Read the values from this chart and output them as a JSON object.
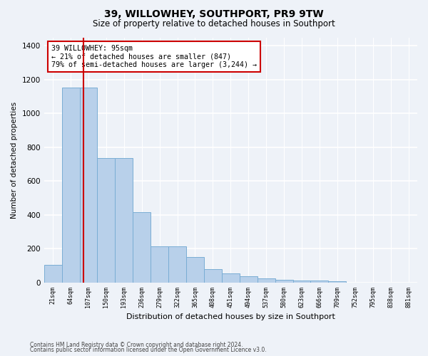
{
  "title": "39, WILLOWHEY, SOUTHPORT, PR9 9TW",
  "subtitle": "Size of property relative to detached houses in Southport",
  "xlabel": "Distribution of detached houses by size in Southport",
  "ylabel": "Number of detached properties",
  "footer_line1": "Contains HM Land Registry data © Crown copyright and database right 2024.",
  "footer_line2": "Contains public sector information licensed under the Open Government Licence v3.0.",
  "bar_labels": [
    "21sqm",
    "64sqm",
    "107sqm",
    "150sqm",
    "193sqm",
    "236sqm",
    "279sqm",
    "322sqm",
    "365sqm",
    "408sqm",
    "451sqm",
    "494sqm",
    "537sqm",
    "580sqm",
    "623sqm",
    "666sqm",
    "709sqm",
    "752sqm",
    "795sqm",
    "838sqm",
    "881sqm"
  ],
  "bar_values": [
    105,
    1155,
    1155,
    735,
    735,
    415,
    215,
    215,
    150,
    80,
    55,
    35,
    25,
    18,
    12,
    12,
    8,
    0,
    0,
    0,
    0
  ],
  "bar_color": "#b8d0ea",
  "bar_edge_color": "#7aadd4",
  "vline_color": "#cc0000",
  "vline_x_index": 1.73,
  "annotation_text_line1": "39 WILLOWHEY: 95sqm",
  "annotation_text_line2": "← 21% of detached houses are smaller (847)",
  "annotation_text_line3": "79% of semi-detached houses are larger (3,244) →",
  "annotation_box_color": "white",
  "annotation_box_edge": "#cc0000",
  "ylim": [
    0,
    1450
  ],
  "yticks": [
    0,
    200,
    400,
    600,
    800,
    1000,
    1200,
    1400
  ],
  "background_color": "#eef2f8",
  "grid_color": "white",
  "title_fontsize": 10,
  "subtitle_fontsize": 8.5
}
